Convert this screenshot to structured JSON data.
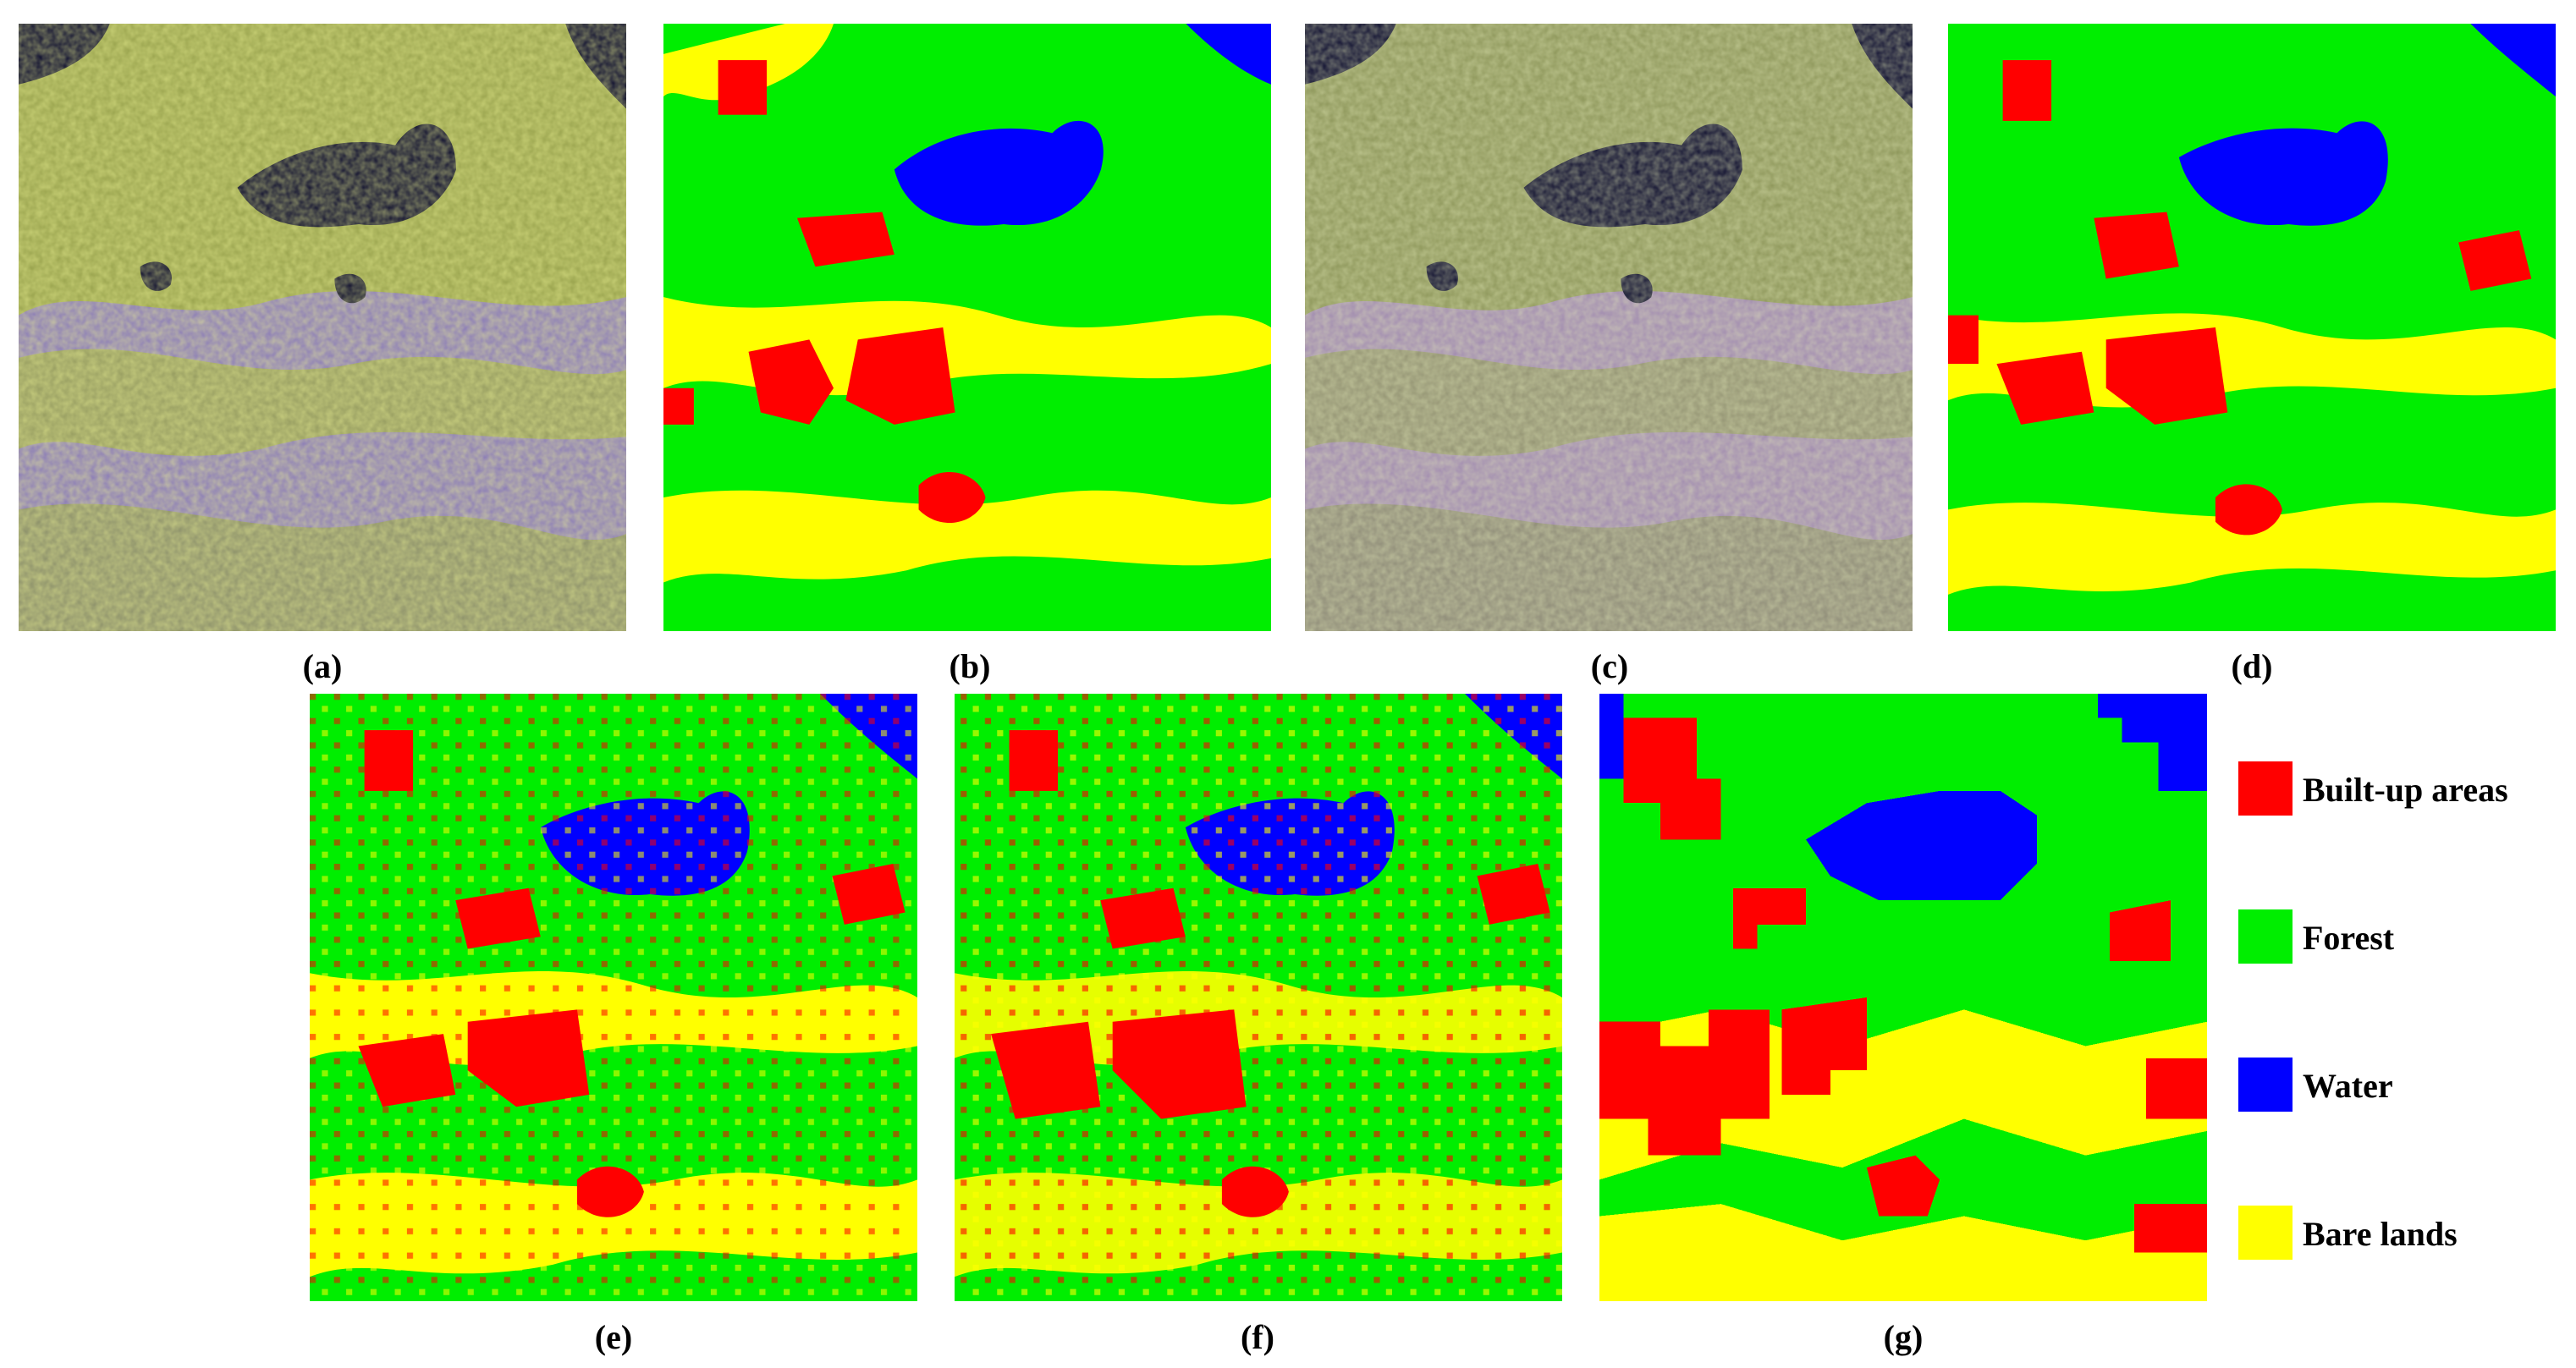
{
  "figure": {
    "panels": [
      {
        "id": "a",
        "label": "(a)",
        "kind": "satellite",
        "palette": "false-color-1"
      },
      {
        "id": "b",
        "label": "(b)",
        "kind": "classification",
        "variant": "smooth"
      },
      {
        "id": "c",
        "label": "(c)",
        "kind": "satellite",
        "palette": "false-color-2"
      },
      {
        "id": "d",
        "label": "(d)",
        "kind": "classification",
        "variant": "smooth"
      },
      {
        "id": "e",
        "label": "(e)",
        "kind": "classification",
        "variant": "detailed"
      },
      {
        "id": "f",
        "label": "(f)",
        "kind": "classification",
        "variant": "detailed"
      },
      {
        "id": "g",
        "label": "(g)",
        "kind": "classification",
        "variant": "blocky"
      }
    ]
  },
  "legend": {
    "items": [
      {
        "label": "Built-up areas",
        "color": "#ff0000"
      },
      {
        "label": "Forest",
        "color": "#00ee00"
      },
      {
        "label": "Water",
        "color": "#0000ff"
      },
      {
        "label": "Bare lands",
        "color": "#ffff00"
      }
    ]
  },
  "colors": {
    "built_up": "#ff0000",
    "forest": "#00ee00",
    "water": "#0000ff",
    "bare": "#ffff00"
  }
}
